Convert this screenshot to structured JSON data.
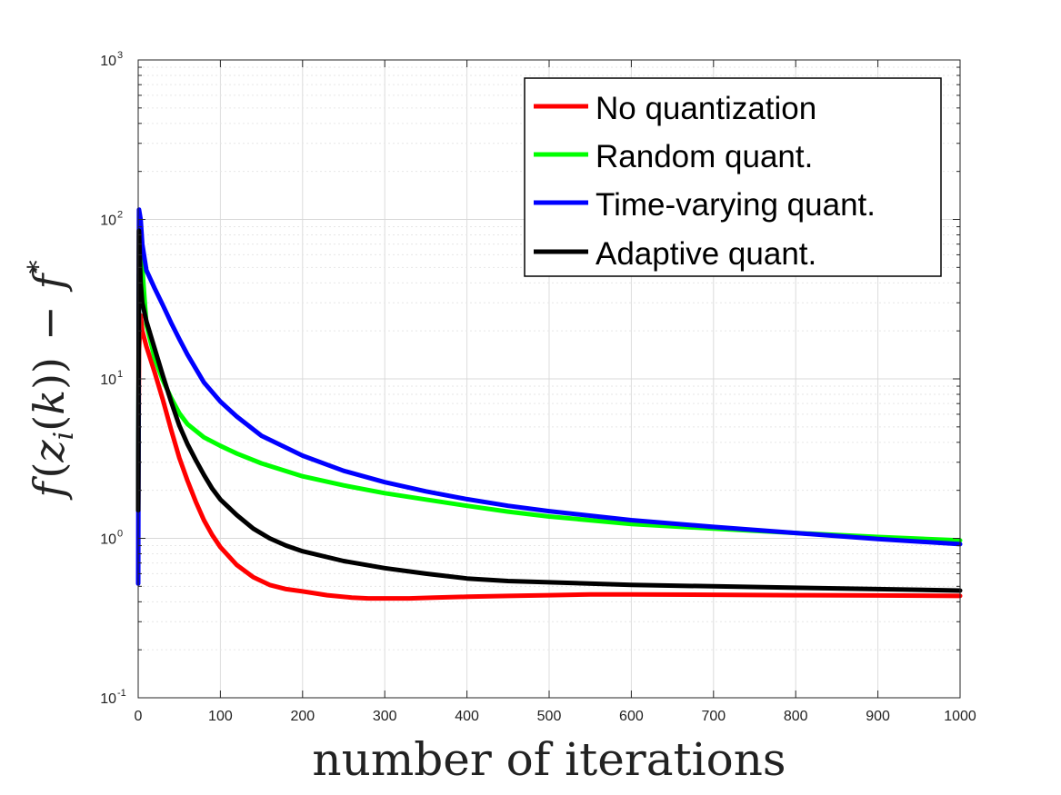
{
  "chart_data": {
    "type": "line",
    "title": "",
    "xlabel": "number of iterations",
    "ylabel": "f(z_i(k)) − f*",
    "ylabel_parts": {
      "f1": "f",
      "open1": "(",
      "z": "z",
      "sub": "i",
      "open2": "(",
      "k": "k",
      "close": "))",
      "minus": "−",
      "f2": "f",
      "star": "*"
    },
    "xscale": "linear",
    "yscale": "log",
    "xlim": [
      0,
      1000
    ],
    "ylim": [
      0.1,
      1000
    ],
    "xticks": [
      0,
      100,
      200,
      300,
      400,
      500,
      600,
      700,
      800,
      900,
      1000
    ],
    "xtick_labels": [
      "0",
      "100",
      "200",
      "300",
      "400",
      "500",
      "600",
      "700",
      "800",
      "900",
      "1000"
    ],
    "yticks": [
      0.1,
      1,
      10,
      100,
      1000
    ],
    "ytick_labels": [
      {
        "base": "10",
        "exp": "-1"
      },
      {
        "base": "10",
        "exp": "0"
      },
      {
        "base": "10",
        "exp": "1"
      },
      {
        "base": "10",
        "exp": "2"
      },
      {
        "base": "10",
        "exp": "3"
      }
    ],
    "grid": true,
    "minor_grid": true,
    "legend_position": "top-right",
    "series": [
      {
        "name": "No quantization",
        "color": "#ff0000",
        "x": [
          0,
          1,
          3,
          5,
          10,
          20,
          30,
          40,
          50,
          60,
          70,
          80,
          90,
          100,
          120,
          140,
          160,
          180,
          200,
          230,
          260,
          280,
          300,
          330,
          360,
          400,
          450,
          500,
          550,
          600,
          700,
          800,
          900,
          1000
        ],
        "y": [
          1.5,
          15,
          25,
          20,
          16,
          11,
          7.4,
          4.8,
          3.2,
          2.3,
          1.7,
          1.3,
          1.05,
          0.88,
          0.68,
          0.57,
          0.51,
          0.48,
          0.465,
          0.44,
          0.425,
          0.42,
          0.42,
          0.42,
          0.425,
          0.43,
          0.435,
          0.44,
          0.445,
          0.445,
          0.443,
          0.44,
          0.438,
          0.435
        ]
      },
      {
        "name": "Random quant.",
        "color": "#00ff00",
        "x": [
          0,
          1,
          3,
          5,
          10,
          20,
          30,
          40,
          50,
          60,
          80,
          100,
          120,
          150,
          200,
          250,
          300,
          350,
          400,
          450,
          500,
          600,
          700,
          800,
          900,
          1000
        ],
        "y": [
          1.5,
          45,
          70,
          50,
          22,
          13.5,
          9.8,
          7.6,
          6.1,
          5.2,
          4.3,
          3.8,
          3.4,
          2.95,
          2.45,
          2.15,
          1.92,
          1.75,
          1.6,
          1.47,
          1.37,
          1.23,
          1.15,
          1.08,
          1.02,
          0.97
        ]
      },
      {
        "name": "Time-varying quant.",
        "color": "#0000ff",
        "x": [
          0,
          1,
          3,
          5,
          10,
          20,
          30,
          40,
          50,
          60,
          80,
          100,
          120,
          150,
          200,
          250,
          300,
          350,
          400,
          450,
          500,
          600,
          700,
          800,
          900,
          1000
        ],
        "y": [
          0.52,
          115,
          100,
          70,
          48,
          37,
          29,
          22.5,
          17.8,
          14.2,
          9.5,
          7.2,
          5.8,
          4.4,
          3.3,
          2.65,
          2.25,
          1.97,
          1.76,
          1.6,
          1.48,
          1.3,
          1.18,
          1.08,
          0.99,
          0.92
        ]
      },
      {
        "name": "Adaptive quant.",
        "color": "#000000",
        "x": [
          0,
          1,
          3,
          5,
          10,
          20,
          30,
          40,
          50,
          60,
          70,
          80,
          90,
          100,
          120,
          140,
          160,
          180,
          200,
          250,
          300,
          350,
          400,
          450,
          500,
          600,
          700,
          800,
          900,
          1000
        ],
        "y": [
          1.5,
          85,
          40,
          30,
          23,
          15.5,
          10.5,
          7.2,
          5.1,
          3.9,
          3.1,
          2.5,
          2.05,
          1.75,
          1.4,
          1.15,
          1.0,
          0.9,
          0.83,
          0.72,
          0.65,
          0.6,
          0.56,
          0.54,
          0.53,
          0.51,
          0.5,
          0.49,
          0.48,
          0.47
        ]
      }
    ]
  }
}
